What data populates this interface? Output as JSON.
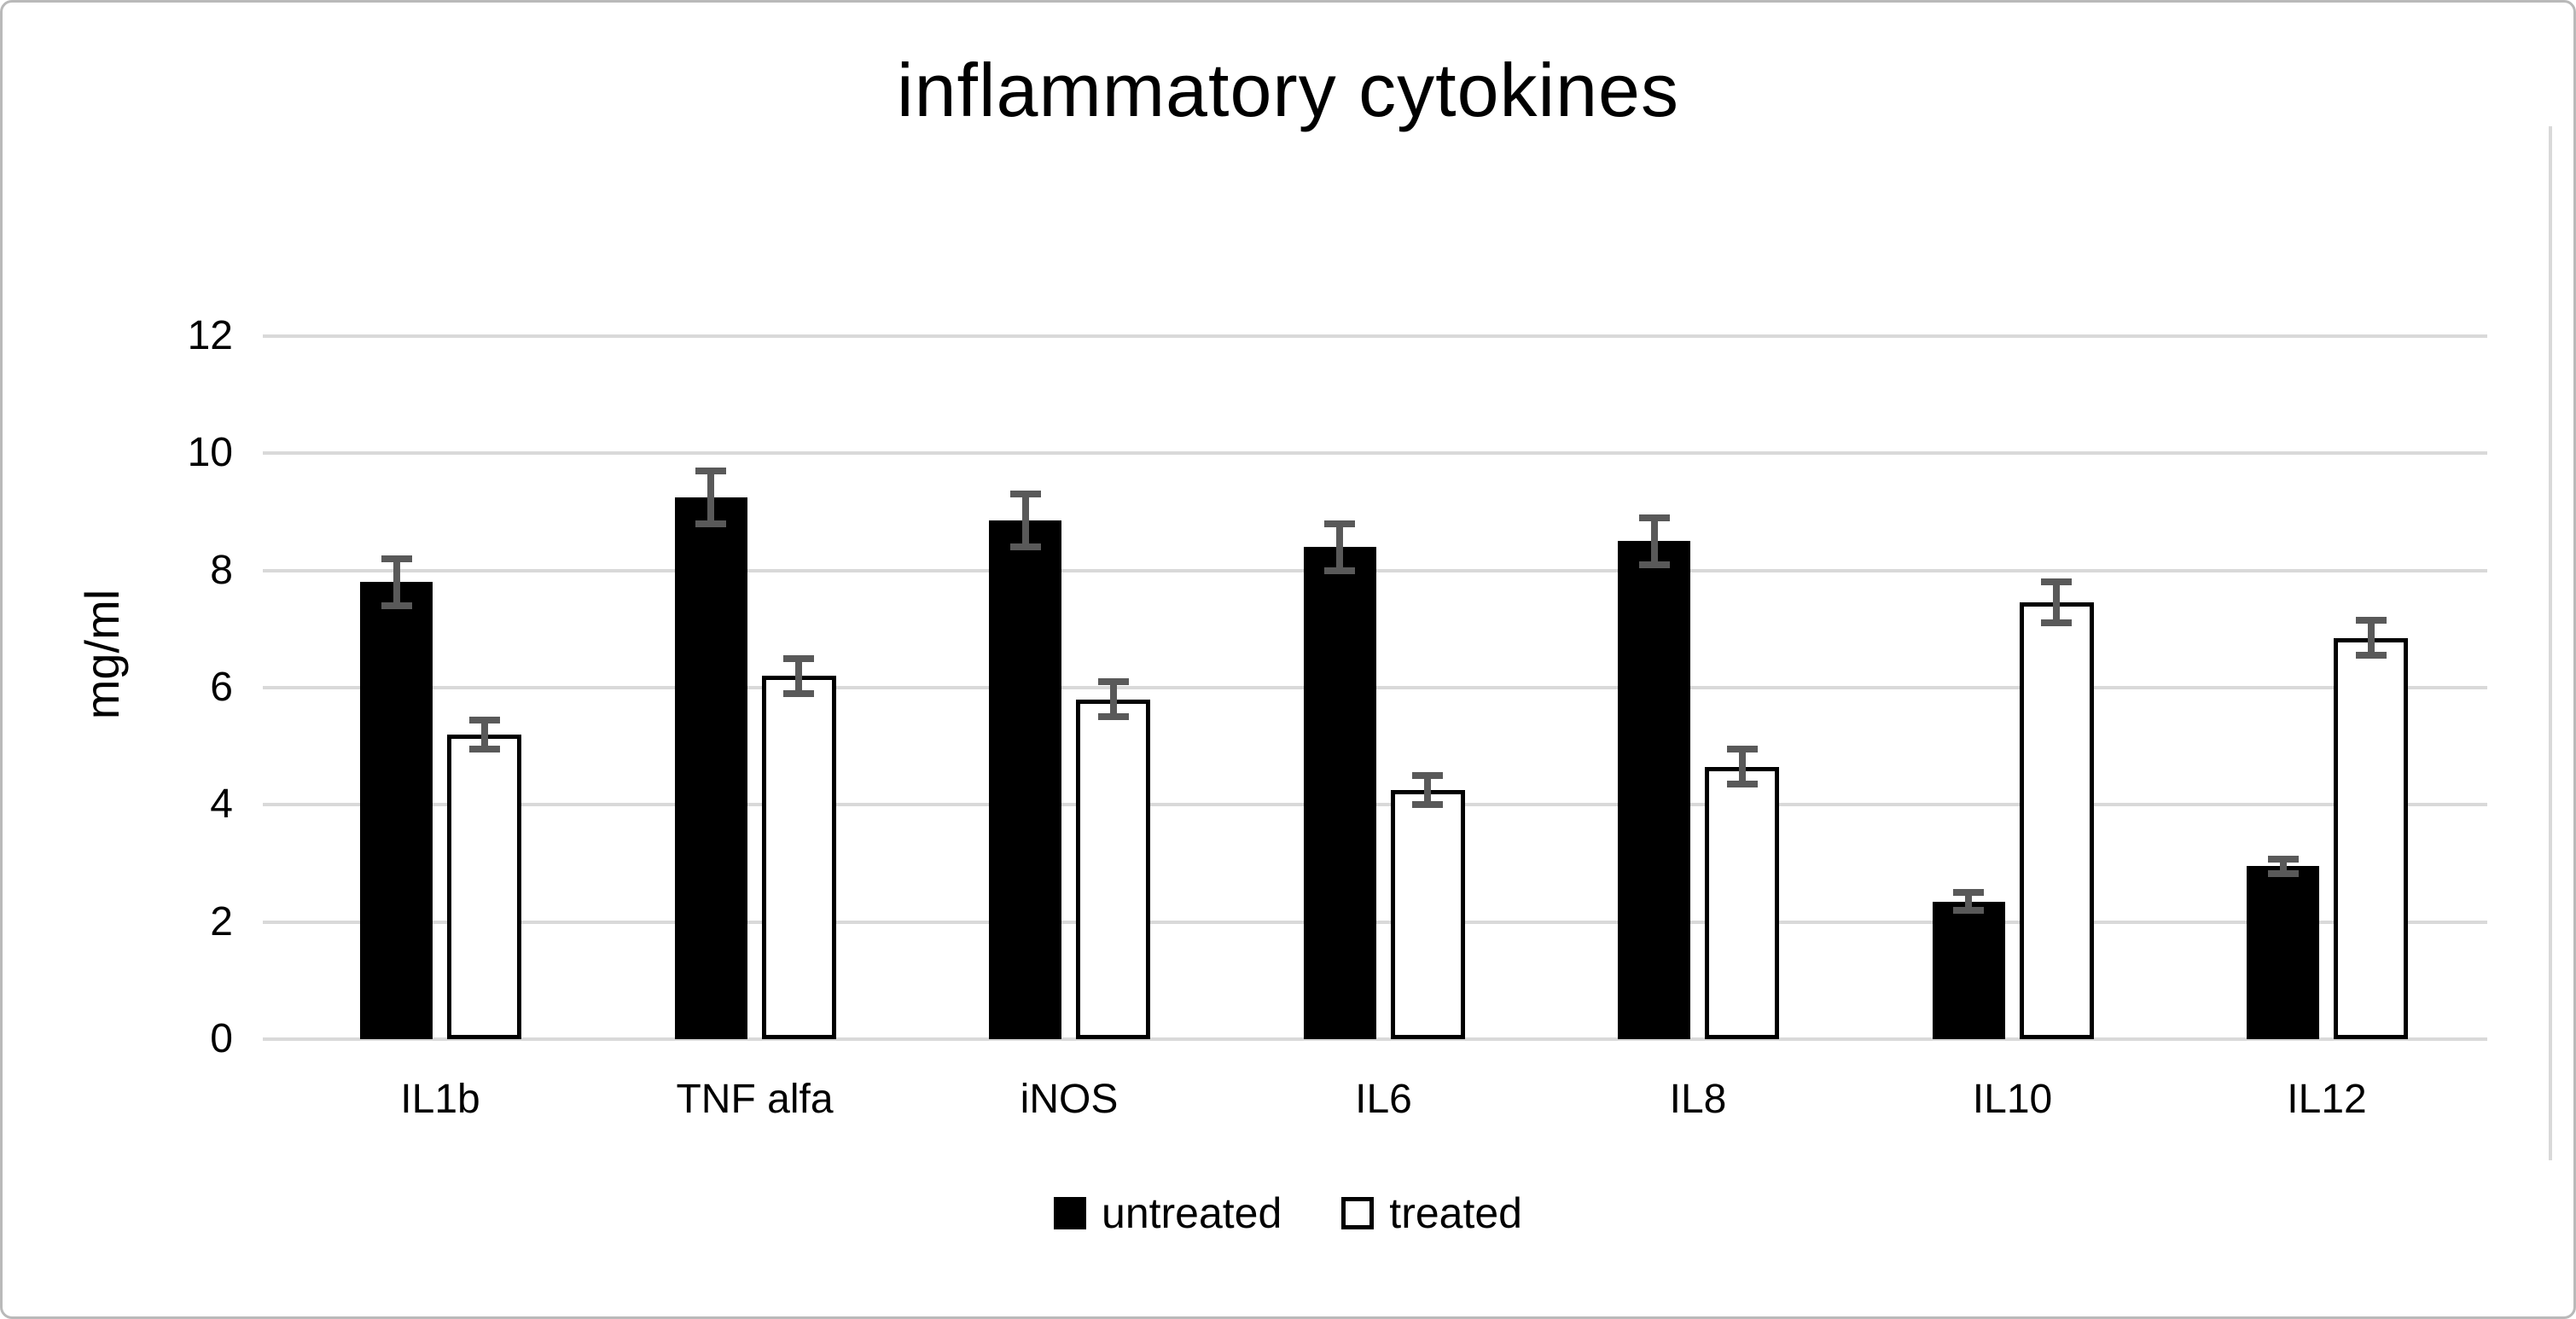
{
  "title": "inflammatory cytokines",
  "chart_data": {
    "type": "bar",
    "title": "inflammatory cytokines",
    "xlabel": "",
    "ylabel": "mg/ml",
    "ylim": [
      0,
      12
    ],
    "y_ticks": [
      0,
      2,
      4,
      6,
      8,
      10,
      12
    ],
    "grid": true,
    "legend_position": "bottom",
    "categories": [
      "IL1b",
      "TNF alfa",
      "iNOS",
      "IL6",
      "IL8",
      "IL10",
      "IL12"
    ],
    "series": [
      {
        "name": "untreated",
        "values": [
          7.8,
          9.25,
          8.85,
          8.4,
          8.5,
          2.35,
          2.95
        ],
        "errors": [
          0.4,
          0.45,
          0.45,
          0.4,
          0.4,
          0.15,
          0.12
        ],
        "fill": "#000000",
        "border": "#000000"
      },
      {
        "name": "treated",
        "values": [
          5.2,
          6.2,
          5.8,
          4.25,
          4.65,
          7.45,
          6.85
        ],
        "errors": [
          0.25,
          0.3,
          0.3,
          0.25,
          0.3,
          0.35,
          0.3
        ],
        "fill": "#ffffff",
        "border": "#000000"
      }
    ],
    "colors": {
      "gridline": "#d9d9d9",
      "error_bar": "#595959",
      "text": "#000000",
      "frame_border": "#b9b9b9"
    }
  }
}
